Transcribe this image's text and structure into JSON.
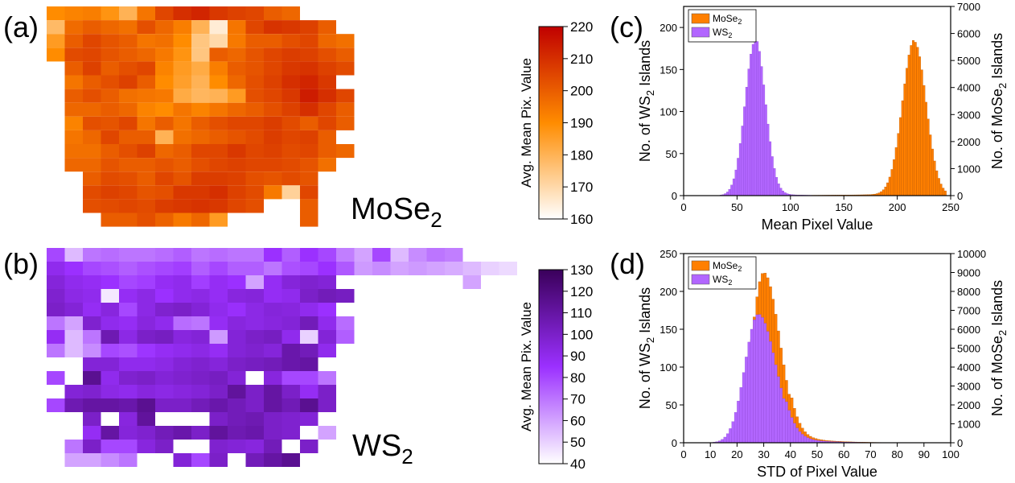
{
  "figure": {
    "panels": {
      "a": "(a)",
      "b": "(b)",
      "c": "(c)",
      "d": "(d)"
    },
    "map_labels": {
      "mose2": "MoSe",
      "ws2": "WS",
      "sub": "2"
    }
  },
  "colors": {
    "mose2_low": "#ffffff",
    "mose2_mid": "#ff8c00",
    "mose2_high": "#c00000",
    "ws2_low": "#ffffff",
    "ws2_mid": "#9b30ff",
    "ws2_high": "#3a005a",
    "orange_bar": "#ff7f00",
    "purple_bar": "#b266ff"
  },
  "chart_data": [
    {
      "id": "a",
      "type": "heatmap",
      "colorbar": {
        "title": "Avg. Mean Pix. Value",
        "range": [
          160,
          220
        ],
        "ticks": [
          160,
          170,
          180,
          190,
          200,
          210,
          220
        ]
      },
      "grid_origin": {
        "col": 0,
        "row": 0
      },
      "rows": [
        [
          190,
          192,
          193,
          188,
          180,
          195,
          205,
          210,
          212,
          208,
          206,
          205,
          200,
          198,
          null,
          null,
          null,
          null
        ],
        [
          178,
          197,
          200,
          198,
          196,
          203,
          198,
          193,
          180,
          165,
          195,
          205,
          209,
          208,
          206,
          200,
          null,
          null
        ],
        [
          186,
          200,
          205,
          202,
          200,
          195,
          196,
          190,
          175,
          170,
          194,
          200,
          200,
          203,
          205,
          198,
          196,
          null
        ],
        [
          190,
          204,
          205,
          202,
          200,
          198,
          194,
          188,
          175,
          200,
          198,
          202,
          205,
          207,
          206,
          203,
          200,
          null
        ],
        [
          null,
          200,
          206,
          200,
          203,
          205,
          192,
          186,
          182,
          193,
          200,
          202,
          205,
          208,
          209,
          206,
          204,
          null
        ],
        [
          null,
          195,
          200,
          203,
          206,
          200,
          190,
          185,
          180,
          190,
          198,
          203,
          206,
          210,
          212,
          208,
          null,
          null
        ],
        [
          null,
          200,
          203,
          200,
          196,
          195,
          194,
          182,
          179,
          180,
          186,
          203,
          205,
          208,
          214,
          210,
          205,
          null
        ],
        [
          null,
          198,
          198,
          200,
          198,
          192,
          190,
          195,
          192,
          195,
          198,
          200,
          203,
          206,
          210,
          205,
          200,
          null
        ],
        [
          null,
          192,
          203,
          202,
          205,
          195,
          200,
          195,
          200,
          203,
          205,
          205,
          207,
          204,
          200,
          205,
          200,
          null
        ],
        [
          null,
          195,
          198,
          205,
          200,
          200,
          180,
          196,
          198,
          200,
          202,
          204,
          207,
          205,
          206,
          200,
          null,
          null
        ],
        [
          null,
          196,
          196,
          200,
          203,
          206,
          198,
          200,
          205,
          205,
          208,
          205,
          206,
          204,
          205,
          200,
          198,
          null
        ],
        [
          null,
          198,
          198,
          202,
          200,
          200,
          202,
          200,
          203,
          205,
          206,
          205,
          205,
          204,
          202,
          196,
          null,
          null
        ],
        [
          null,
          null,
          200,
          204,
          203,
          200,
          205,
          202,
          207,
          207,
          206,
          203,
          202,
          204,
          202,
          null,
          null,
          null
        ],
        [
          null,
          null,
          204,
          206,
          205,
          202,
          203,
          208,
          208,
          210,
          206,
          204,
          194,
          172,
          205,
          null,
          null,
          null
        ],
        [
          null,
          null,
          203,
          204,
          205,
          204,
          207,
          208,
          209,
          208,
          205,
          203,
          null,
          null,
          200,
          null,
          null,
          null
        ],
        [
          null,
          null,
          null,
          200,
          200,
          203,
          199,
          194,
          198,
          186,
          null,
          null,
          null,
          null,
          200,
          null,
          null,
          null
        ]
      ]
    },
    {
      "id": "b",
      "type": "heatmap",
      "colorbar": {
        "title": "Avg. Mean Pix. Value",
        "range": [
          40,
          130
        ],
        "ticks": [
          40,
          50,
          60,
          70,
          80,
          90,
          100,
          110,
          120,
          130
        ]
      },
      "rows": [
        [
          80,
          55,
          70,
          72,
          70,
          70,
          72,
          75,
          70,
          72,
          70,
          70,
          85,
          75,
          85,
          80,
          68,
          60,
          80,
          55,
          65,
          70,
          68,
          null,
          null,
          null
        ],
        [
          90,
          85,
          80,
          78,
          75,
          78,
          80,
          82,
          75,
          80,
          75,
          75,
          70,
          78,
          80,
          85,
          76,
          62,
          65,
          60,
          62,
          60,
          58,
          55,
          50,
          48
        ],
        [
          95,
          90,
          88,
          85,
          80,
          82,
          88,
          90,
          82,
          88,
          85,
          60,
          88,
          95,
          98,
          96,
          null,
          null,
          null,
          null,
          null,
          null,
          null,
          60,
          null,
          null
        ],
        [
          98,
          92,
          90,
          45,
          88,
          92,
          85,
          90,
          92,
          88,
          94,
          95,
          88,
          90,
          100,
          104,
          102,
          null,
          null,
          null,
          null,
          null,
          null,
          null,
          null,
          null
        ],
        [
          100,
          96,
          88,
          94,
          80,
          92,
          98,
          100,
          96,
          90,
          86,
          92,
          95,
          94,
          90,
          85,
          null,
          null,
          null,
          null,
          null,
          null,
          null,
          null,
          null,
          null
        ],
        [
          70,
          60,
          98,
          90,
          88,
          94,
          90,
          72,
          70,
          88,
          94,
          92,
          94,
          96,
          104,
          90,
          72,
          null,
          null,
          null,
          null,
          null,
          null,
          null,
          null,
          null
        ],
        [
          88,
          55,
          70,
          106,
          92,
          100,
          102,
          94,
          96,
          62,
          96,
          100,
          102,
          90,
          50,
          96,
          75,
          null,
          null,
          null,
          null,
          null,
          null,
          null,
          null,
          null
        ],
        [
          70,
          55,
          65,
          80,
          78,
          84,
          88,
          90,
          92,
          88,
          96,
          98,
          95,
          108,
          104,
          90,
          null,
          null,
          null,
          null,
          null,
          null,
          null,
          null,
          null,
          null
        ],
        [
          null,
          null,
          96,
          96,
          90,
          90,
          92,
          96,
          98,
          95,
          100,
          102,
          104,
          108,
          110,
          null,
          null,
          null,
          null,
          null,
          null,
          null,
          null,
          null,
          null,
          null
        ],
        [
          80,
          null,
          115,
          90,
          98,
          100,
          96,
          98,
          100,
          102,
          96,
          null,
          94,
          80,
          80,
          70,
          null,
          null,
          null,
          null,
          null,
          null,
          null,
          null,
          null,
          null
        ],
        [
          null,
          96,
          98,
          92,
          90,
          94,
          92,
          94,
          96,
          100,
          112,
          100,
          110,
          100,
          88,
          100,
          null,
          null,
          null,
          null,
          null,
          null,
          null,
          null,
          null,
          null
        ],
        [
          80,
          106,
          110,
          110,
          108,
          115,
          100,
          100,
          104,
          108,
          104,
          100,
          110,
          105,
          115,
          100,
          null,
          null,
          null,
          null,
          null,
          null,
          null,
          null,
          null,
          null
        ],
        [
          null,
          null,
          100,
          null,
          94,
          112,
          null,
          null,
          null,
          100,
          104,
          106,
          100,
          98,
          96,
          null,
          null,
          null,
          null,
          null,
          null,
          null,
          null,
          null,
          null,
          null
        ],
        [
          null,
          null,
          88,
          110,
          95,
          98,
          104,
          108,
          100,
          112,
          106,
          108,
          100,
          98,
          null,
          60,
          null,
          null,
          null,
          null,
          null,
          null,
          null,
          null,
          null,
          null
        ],
        [
          null,
          70,
          100,
          80,
          80,
          94,
          100,
          null,
          null,
          98,
          96,
          94,
          104,
          null,
          100,
          null,
          null,
          null,
          null,
          null,
          null,
          null,
          null,
          null,
          null,
          null
        ],
        [
          null,
          60,
          60,
          65,
          70,
          null,
          null,
          96,
          80,
          100,
          null,
          104,
          110,
          115,
          null,
          null,
          null,
          null,
          null,
          null,
          null,
          null,
          null,
          null,
          null,
          null
        ]
      ]
    },
    {
      "id": "c",
      "type": "bar",
      "xlabel": "Mean Pixel Value",
      "ylabel_left": "No. of WS",
      "ylabel_left_tail": " Islands",
      "ylabel_right": "No. of MoSe",
      "ylabel_right_tail": " Islands",
      "sub": "2",
      "xlim": [
        0,
        250
      ],
      "xticks": [
        0,
        50,
        100,
        150,
        200,
        250
      ],
      "ylim_left": [
        0,
        225
      ],
      "yticks_left": [
        0,
        50,
        100,
        150,
        200
      ],
      "ylim_right": [
        0,
        7000
      ],
      "yticks_right": [
        0,
        1000,
        2000,
        3000,
        4000,
        5000,
        6000,
        7000
      ],
      "legend": [
        {
          "name": "MoSe",
          "sub": "2"
        },
        {
          "name": "WS",
          "sub": "2"
        }
      ],
      "bin_width": 2,
      "series": [
        {
          "name": "WS2",
          "axis": "left",
          "peak_x": 67,
          "peak_y": 184,
          "sigma": 9.5,
          "x_range": [
            22,
            120
          ]
        },
        {
          "name": "MoSe2",
          "axis": "right",
          "peak_x": 216,
          "peak_y": 5700,
          "sigma": 11,
          "x_range": [
            120,
            245
          ]
        }
      ]
    },
    {
      "id": "d",
      "type": "bar",
      "xlabel": "STD of Pixel Value",
      "ylabel_left": "No. of WS",
      "ylabel_left_tail": " Islands",
      "ylabel_right": "No. of MoSe",
      "ylabel_right_tail": " Islands",
      "sub": "2",
      "xlim": [
        0,
        100
      ],
      "xticks": [
        0,
        10,
        20,
        30,
        40,
        50,
        60,
        70,
        80,
        90,
        100
      ],
      "ylim_left": [
        0,
        250
      ],
      "yticks_left": [
        0,
        50,
        100,
        150,
        200,
        250
      ],
      "ylim_right": [
        0,
        10000
      ],
      "yticks_right": [
        0,
        1000,
        2000,
        3000,
        4000,
        5000,
        6000,
        7000,
        8000,
        9000,
        10000
      ],
      "legend": [
        {
          "name": "MoSe",
          "sub": "2"
        },
        {
          "name": "WS",
          "sub": "2"
        }
      ],
      "bin_width": 1,
      "series": [
        {
          "name": "MoSe2",
          "axis": "right",
          "peak_x": 30,
          "peak_y": 9000,
          "sigma_left": 4.5,
          "sigma_right": 6,
          "x_range": [
            8,
            80
          ]
        },
        {
          "name": "WS2",
          "axis": "left",
          "peak_x": 28,
          "peak_y": 170,
          "sigma_left": 5,
          "sigma_right": 6.5,
          "x_range": [
            8,
            75
          ]
        }
      ]
    }
  ]
}
